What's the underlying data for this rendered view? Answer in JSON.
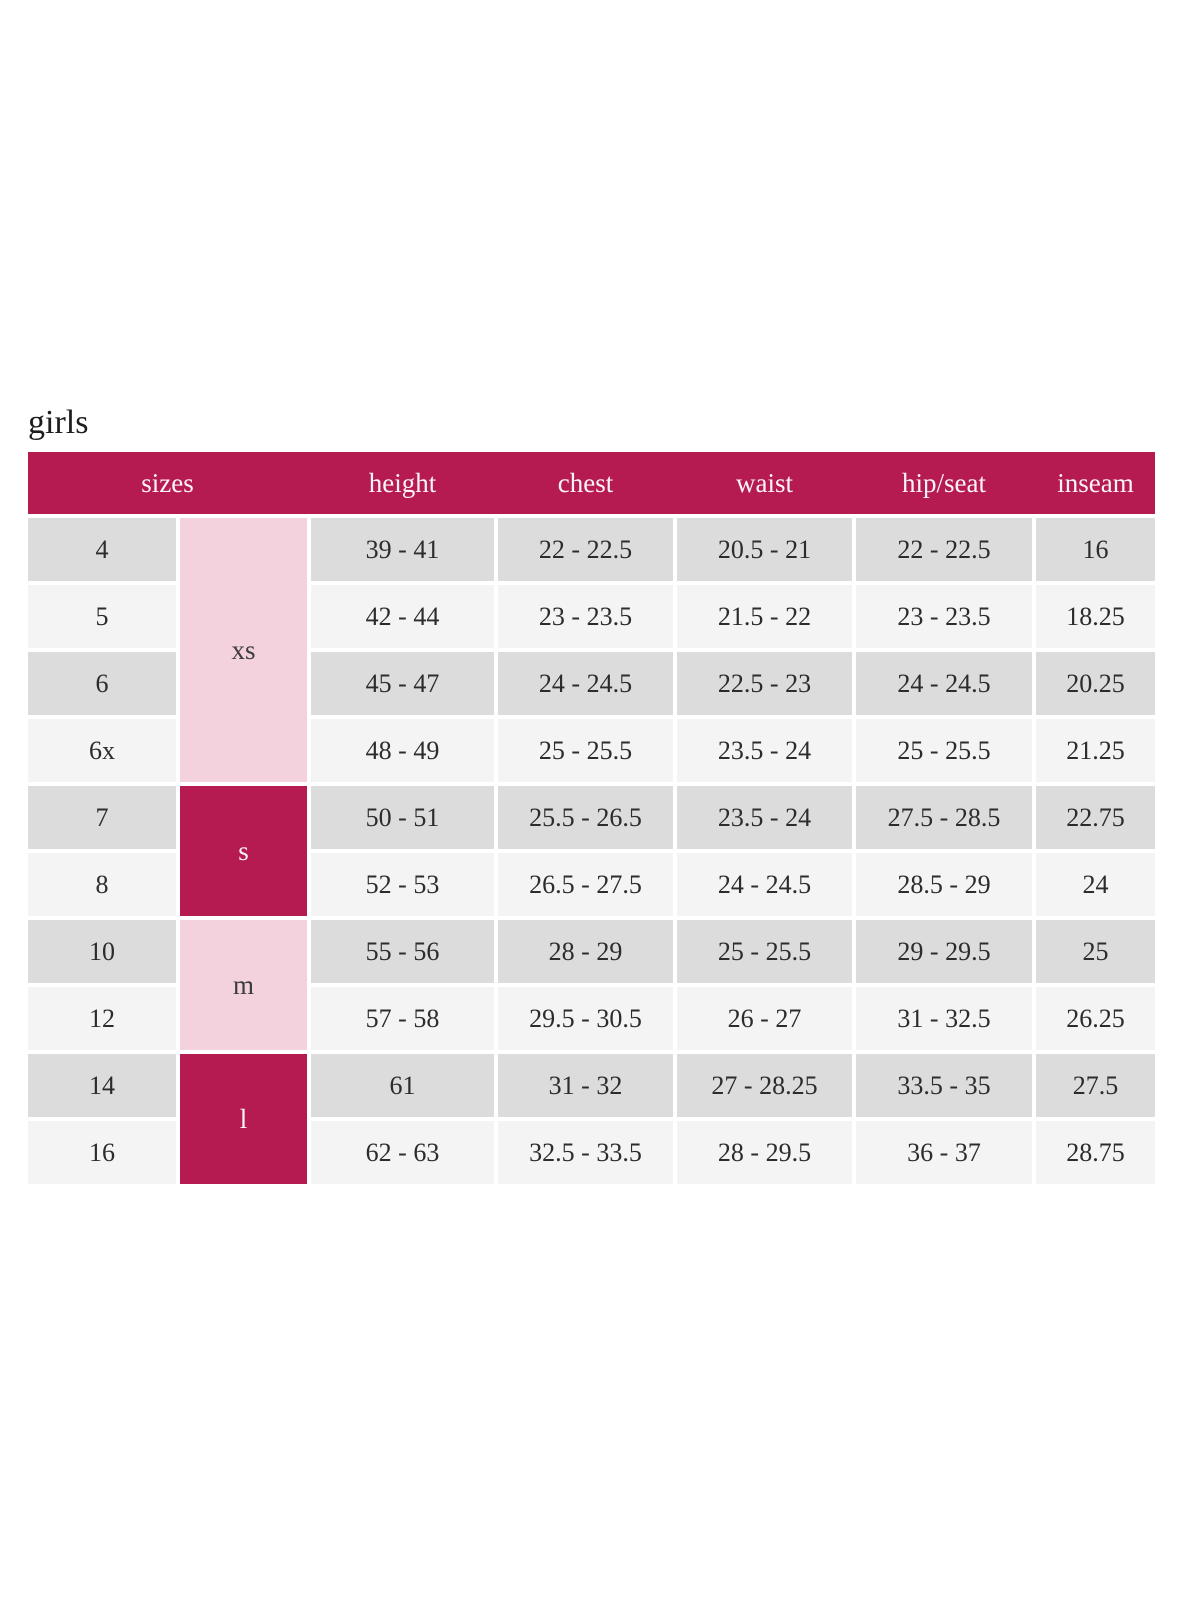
{
  "page": {
    "title": "girls"
  },
  "colors": {
    "accent_crimson": "#b51b50",
    "accent_pink": "#f3d1dd",
    "row_gray": "#dcdcdc",
    "row_light": "#f4f4f4",
    "header_text": "#fbf4f7",
    "body_text": "#2c2c2c"
  },
  "table": {
    "headers": {
      "sizes": "sizes",
      "height": "height",
      "chest": "chest",
      "waist": "waist",
      "hip_seat": "hip/seat",
      "inseam": "inseam"
    },
    "size_groups": [
      {
        "label": "xs",
        "span_rows": 4,
        "style": "light"
      },
      {
        "label": "s",
        "span_rows": 2,
        "style": "dark"
      },
      {
        "label": "m",
        "span_rows": 2,
        "style": "light"
      },
      {
        "label": "l",
        "span_rows": 2,
        "style": "dark"
      }
    ],
    "rows": [
      {
        "size": "4",
        "height": "39 - 41",
        "chest": "22 - 22.5",
        "waist": "20.5 - 21",
        "hip_seat": "22 - 22.5",
        "inseam": "16"
      },
      {
        "size": "5",
        "height": "42 - 44",
        "chest": "23 - 23.5",
        "waist": "21.5 - 22",
        "hip_seat": "23 - 23.5",
        "inseam": "18.25"
      },
      {
        "size": "6",
        "height": "45 - 47",
        "chest": "24 - 24.5",
        "waist": "22.5 - 23",
        "hip_seat": "24 - 24.5",
        "inseam": "20.25"
      },
      {
        "size": "6x",
        "height": "48 - 49",
        "chest": "25 - 25.5",
        "waist": "23.5 - 24",
        "hip_seat": "25 - 25.5",
        "inseam": "21.25"
      },
      {
        "size": "7",
        "height": "50 - 51",
        "chest": "25.5 - 26.5",
        "waist": "23.5 - 24",
        "hip_seat": "27.5 - 28.5",
        "inseam": "22.75"
      },
      {
        "size": "8",
        "height": "52 - 53",
        "chest": "26.5 - 27.5",
        "waist": "24 - 24.5",
        "hip_seat": "28.5 - 29",
        "inseam": "24"
      },
      {
        "size": "10",
        "height": "55 - 56",
        "chest": "28 - 29",
        "waist": "25 - 25.5",
        "hip_seat": "29 - 29.5",
        "inseam": "25"
      },
      {
        "size": "12",
        "height": "57 - 58",
        "chest": "29.5 - 30.5",
        "waist": "26 - 27",
        "hip_seat": "31 - 32.5",
        "inseam": "26.25"
      },
      {
        "size": "14",
        "height": "61",
        "chest": "31 - 32",
        "waist": "27 - 28.25",
        "hip_seat": "33.5 - 35",
        "inseam": "27.5"
      },
      {
        "size": "16",
        "height": "62 - 63",
        "chest": "32.5 - 33.5",
        "waist": "28 - 29.5",
        "hip_seat": "36 - 37",
        "inseam": "28.75"
      }
    ]
  }
}
